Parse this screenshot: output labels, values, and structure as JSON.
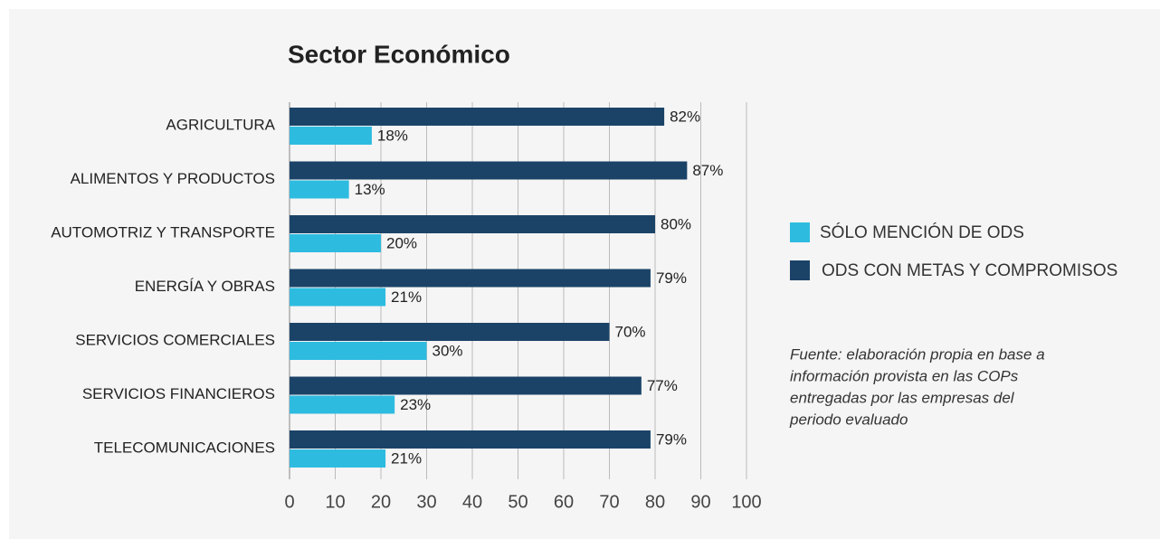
{
  "chart_data": {
    "type": "bar",
    "orientation": "horizontal",
    "title": "Sector Económico",
    "categories": [
      "AGRICULTURA",
      "ALIMENTOS Y PRODUCTOS",
      "AUTOMOTRIZ Y TRANSPORTE",
      "ENERGÍA Y OBRAS",
      "SERVICIOS COMERCIALES",
      "SERVICIOS FINANCIEROS",
      "TELECOMUNICACIONES"
    ],
    "series": [
      {
        "name": "SÓLO MENCIÓN DE ODS",
        "color": "#2ebbe0",
        "values": [
          18,
          13,
          20,
          21,
          30,
          23,
          21
        ],
        "value_labels": [
          "18%",
          "13%",
          "20%",
          "21%",
          "30%",
          "23%",
          "21%"
        ]
      },
      {
        "name": "ODS CON METAS Y COMPROMISOS",
        "color": "#1b4368",
        "values": [
          82,
          87,
          80,
          79,
          70,
          77,
          79
        ],
        "value_labels": [
          "82%",
          "87%",
          "80%",
          "79%",
          "70%",
          "77%",
          "79%"
        ]
      }
    ],
    "xlim": [
      0,
      100
    ],
    "xticks": [
      0,
      10,
      20,
      30,
      40,
      50,
      60,
      70,
      80,
      90,
      100
    ],
    "grid": true,
    "legend": "right",
    "note": [
      "Fuente: elaboración propia en base a",
      "información provista en las COPs",
      "entregadas por las empresas del",
      "periodo evaluado"
    ]
  }
}
